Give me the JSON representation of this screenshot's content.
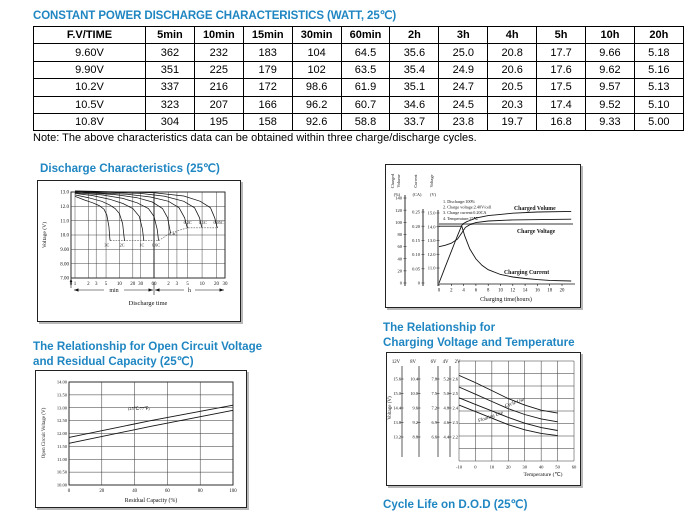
{
  "colors": {
    "accent": "#1f86c2",
    "line": "#141414",
    "grid": "#2a2a2a",
    "gray_axis": "#8a8a8a"
  },
  "header": {
    "title": "CONSTANT POWER DISCHARGE CHARACTERISTICS (WATT, 25℃)",
    "note": "Note: The above characteristics data can be obtained within three charge/discharge cycles."
  },
  "table": {
    "headers": [
      "F.V/TIME",
      "5min",
      "10min",
      "15min",
      "30min",
      "60min",
      "2h",
      "3h",
      "4h",
      "5h",
      "10h",
      "20h"
    ],
    "rows": [
      [
        "9.60V",
        "362",
        "232",
        "183",
        "104",
        "64.5",
        "35.6",
        "25.0",
        "20.8",
        "17.7",
        "9.66",
        "5.18"
      ],
      [
        "9.90V",
        "351",
        "225",
        "179",
        "102",
        "63.5",
        "35.4",
        "24.9",
        "20.6",
        "17.6",
        "9.62",
        "5.16"
      ],
      [
        "10.2V",
        "337",
        "216",
        "172",
        "98.6",
        "61.9",
        "35.1",
        "24.7",
        "20.5",
        "17.5",
        "9.57",
        "5.13"
      ],
      [
        "10.5V",
        "323",
        "207",
        "166",
        "96.2",
        "60.7",
        "34.6",
        "24.5",
        "20.3",
        "17.4",
        "9.52",
        "5.10"
      ],
      [
        "10.8V",
        "304",
        "195",
        "158",
        "92.6",
        "58.8",
        "33.7",
        "23.8",
        "19.7",
        "16.8",
        "9.33",
        "5.00"
      ]
    ]
  },
  "headings": {
    "discharge": "Discharge Characteristics (25℃)",
    "ocv_line1": "The Relationship for Open Circuit Voltage",
    "ocv_line2": "and Residual Capacity (25℃)",
    "cvt_line1": "The Relationship for",
    "cvt_line2": "Charging Voltage and Temperature",
    "cycle_life": "Cycle Life on D.O.D (25℃)"
  },
  "chart_data": [
    {
      "id": "discharge_characteristics",
      "type": "line",
      "title": "Discharge Characteristics (25℃)",
      "ylabel": "Voltage (V)",
      "xlabel": "Discharge time",
      "x_section_labels": [
        "min",
        "h"
      ],
      "x_origin_label": "0",
      "y_ticks": [
        {
          "label": "13.0",
          "v": 13
        },
        {
          "label": "12.0",
          "v": 12
        },
        {
          "label": "11.0",
          "v": 11
        },
        {
          "label": "10.0",
          "v": 10
        },
        {
          "label": "9.00",
          "v": 9
        },
        {
          "label": "8.00",
          "v": 8
        },
        {
          "label": "7.00",
          "v": 7
        }
      ],
      "x_ticks_min": [
        1,
        2,
        3,
        5,
        10,
        20,
        30,
        60
      ],
      "x_ticks_h": [
        2,
        3,
        5,
        10,
        20,
        30
      ],
      "ylim": [
        7,
        13.5
      ],
      "series": [
        {
          "name": "3C",
          "points": [
            [
              1,
              12.7
            ],
            [
              1.6,
              12.45
            ],
            [
              2.5,
              12.25
            ],
            [
              3.5,
              12.05
            ],
            [
              4.5,
              11.8
            ],
            [
              5.2,
              11.4
            ],
            [
              5.8,
              10.6
            ],
            [
              6.1,
              9.7
            ],
            [
              6.2,
              9.6
            ]
          ],
          "label_at": [
            5.2,
            9.2
          ]
        },
        {
          "name": "2C",
          "points": [
            [
              1,
              12.8
            ],
            [
              2,
              12.6
            ],
            [
              4,
              12.35
            ],
            [
              6,
              12.1
            ],
            [
              8,
              11.85
            ],
            [
              10,
              11.5
            ],
            [
              11.8,
              10.8
            ],
            [
              12.8,
              9.8
            ],
            [
              13,
              9.6
            ]
          ],
          "label_at": [
            11.5,
            9.2
          ]
        },
        {
          "name": "1C",
          "points": [
            [
              1,
              12.9
            ],
            [
              2.5,
              12.75
            ],
            [
              6,
              12.5
            ],
            [
              12,
              12.2
            ],
            [
              20,
              11.85
            ],
            [
              28,
              11.3
            ],
            [
              33,
              10.4
            ],
            [
              35,
              9.7
            ],
            [
              36,
              9.6
            ]
          ],
          "label_at": [
            32,
            9.2
          ]
        },
        {
          "name": "0.6C",
          "points": [
            [
              1,
              12.95
            ],
            [
              4,
              12.8
            ],
            [
              12,
              12.55
            ],
            [
              25,
              12.25
            ],
            [
              45,
              11.85
            ],
            [
              60,
              11.3
            ],
            [
              70,
              10.4
            ],
            [
              74,
              9.7
            ],
            [
              75,
              9.6
            ]
          ],
          "label_at": [
            66,
            9.2
          ]
        },
        {
          "name": "0.4C",
          "points": [
            [
              1,
              13.0
            ],
            [
              8,
              12.82
            ],
            [
              25,
              12.6
            ],
            [
              55,
              12.3
            ],
            [
              90,
              11.85
            ],
            [
              115,
              11.2
            ],
            [
              128,
              10.4
            ],
            [
              132,
              10.15
            ]
          ],
          "label_at": [
            150,
            9.95
          ]
        },
        {
          "name": "0.2C",
          "points": [
            [
              1,
              13.02
            ],
            [
              15,
              12.85
            ],
            [
              50,
              12.65
            ],
            [
              120,
              12.35
            ],
            [
              200,
              11.9
            ],
            [
              260,
              11.2
            ],
            [
              290,
              10.6
            ],
            [
              298,
              10.5
            ]
          ],
          "label_at": [
            300,
            10.78
          ]
        },
        {
          "name": "0.1C",
          "points": [
            [
              1,
              13.05
            ],
            [
              30,
              12.9
            ],
            [
              100,
              12.7
            ],
            [
              250,
              12.35
            ],
            [
              420,
              11.9
            ],
            [
              530,
              11.2
            ],
            [
              585,
              10.6
            ],
            [
              600,
              10.5
            ]
          ],
          "label_at": [
            620,
            10.78
          ]
        },
        {
          "name": "0.05C",
          "points": [
            [
              1,
              13.08
            ],
            [
              60,
              12.95
            ],
            [
              250,
              12.72
            ],
            [
              550,
              12.35
            ],
            [
              900,
              11.9
            ],
            [
              1100,
              11.2
            ],
            [
              1220,
              10.6
            ],
            [
              1260,
              10.5
            ]
          ],
          "label_at": [
            1320,
            10.78
          ]
        }
      ],
      "cutoff_line": [
        [
          6.2,
          9.6
        ],
        [
          75,
          9.6
        ],
        [
          132,
          10.15
        ],
        [
          298,
          10.5
        ],
        [
          1260,
          10.5
        ]
      ]
    },
    {
      "id": "charge_characteristics",
      "type": "line",
      "xlabel": "Charging time(hours)",
      "x_ticks": [
        0,
        2,
        4,
        6,
        8,
        10,
        12,
        14,
        16,
        18,
        20
      ],
      "axes": {
        "volume": {
          "title_words": [
            "Charged",
            "Volume"
          ],
          "unit": "(%)",
          "ticks": [
            0,
            20,
            40,
            60,
            80,
            100,
            120,
            140
          ]
        },
        "current": {
          "title_words": [
            "Current"
          ],
          "unit": "(CA)",
          "ticks": [
            "0",
            "0.05",
            "0.10",
            "0.15",
            "0.20",
            "0.25"
          ]
        },
        "voltage": {
          "title_words": [
            "Voltage"
          ],
          "unit": "(V)",
          "ticks": [
            "11.0",
            "12.0",
            "13.0",
            "14.0",
            "15.0"
          ]
        }
      },
      "conditions": [
        "1. Discharge:100%",
        "2. Charge voltage:2.40V/cell",
        "3. Charge current:0.20CA",
        "4. Temperature:25℃"
      ],
      "curve_labels": {
        "volume": "Charged Volume",
        "voltage": "Charge Voltage",
        "current": "Charging Current"
      },
      "voltage_setpoint": 14.2,
      "series": {
        "charged_volume": [
          [
            0,
            0
          ],
          [
            0.5,
            13
          ],
          [
            1,
            26
          ],
          [
            1.5,
            39
          ],
          [
            2,
            52
          ],
          [
            2.5,
            65
          ],
          [
            3,
            78
          ],
          [
            3.7,
            95
          ],
          [
            4,
            98
          ],
          [
            4.5,
            101
          ],
          [
            5,
            103
          ],
          [
            6,
            107
          ],
          [
            8,
            111
          ],
          [
            10,
            113
          ],
          [
            12,
            115
          ],
          [
            16,
            117
          ],
          [
            21.5,
            118
          ]
        ],
        "charge_voltage": [
          [
            0,
            12.55
          ],
          [
            1,
            12.65
          ],
          [
            2,
            12.8
          ],
          [
            3,
            13.1
          ],
          [
            3.7,
            13.55
          ],
          [
            4.3,
            13.95
          ],
          [
            5,
            14.15
          ],
          [
            6,
            14.3
          ],
          [
            8,
            14.42
          ],
          [
            12,
            14.5
          ],
          [
            21.5,
            14.55
          ]
        ],
        "charging_current": [
          [
            0,
            0.2
          ],
          [
            3.7,
            0.2
          ],
          [
            4.2,
            0.165
          ],
          [
            5,
            0.12
          ],
          [
            6,
            0.085
          ],
          [
            7,
            0.062
          ],
          [
            8,
            0.047
          ],
          [
            10,
            0.03
          ],
          [
            12,
            0.021
          ],
          [
            14,
            0.016
          ],
          [
            16,
            0.012
          ],
          [
            18,
            0.009
          ],
          [
            21.5,
            0.007
          ]
        ]
      }
    },
    {
      "id": "ocv_vs_residual_capacity",
      "type": "line",
      "title": "The Relationship for Open Circuit Voltage and Residual Capacity (25℃)",
      "ylabel": "Open Circuit Voltage (V)",
      "xlabel": "Residual Capacity (%)",
      "annotation": "(25℃/77℉)",
      "y_ticks": [
        "14.00",
        "13.50",
        "13.00",
        "12.50",
        "12.00",
        "11.50",
        "11.00",
        "10.50",
        "10.00"
      ],
      "x_ticks": [
        0,
        20,
        40,
        60,
        80,
        100
      ],
      "ylim": [
        10,
        14
      ],
      "series": [
        {
          "name": "upper",
          "points": [
            [
              0,
              11.85
            ],
            [
              50,
              12.5
            ],
            [
              100,
              13.1
            ]
          ]
        },
        {
          "name": "lower",
          "points": [
            [
              0,
              11.62
            ],
            [
              50,
              12.28
            ],
            [
              100,
              12.9
            ]
          ]
        }
      ]
    },
    {
      "id": "charging_voltage_vs_temperature",
      "type": "line",
      "title": "The Relationship for Charging Voltage and Temperature",
      "ylabel": "Voltage (V)",
      "xlabel": "Temperature (℃)",
      "scale_headers": [
        "12V",
        "8V",
        "6V",
        "4V",
        "2V"
      ],
      "scales": [
        [
          "15.6",
          "15.0",
          "14.4",
          "13.8",
          "13.2"
        ],
        [
          "10.4",
          "10.0",
          "9.6",
          "9.2",
          "8.8"
        ],
        [
          "7.8",
          "7.5",
          "7.2",
          "6.9",
          "6.6"
        ],
        [
          "5.2",
          "5.0",
          "4.8",
          "4.6",
          "4.4"
        ],
        [
          "2.6",
          "2.5",
          "2.4",
          "2.3",
          "2.2"
        ]
      ],
      "x_ticks": [
        -10,
        0,
        10,
        20,
        30,
        40,
        50,
        60
      ],
      "band_labels": [
        "Cycle Use",
        "Floating Use"
      ],
      "series": [
        {
          "name": "cycle_upper",
          "points": [
            [
              -10,
              2.625
            ],
            [
              0,
              2.575
            ],
            [
              10,
              2.52
            ],
            [
              20,
              2.465
            ],
            [
              30,
              2.42
            ],
            [
              40,
              2.385
            ],
            [
              50,
              2.365
            ]
          ]
        },
        {
          "name": "cycle_lower",
          "points": [
            [
              -10,
              2.545
            ],
            [
              0,
              2.495
            ],
            [
              10,
              2.445
            ],
            [
              20,
              2.395
            ],
            [
              30,
              2.355
            ],
            [
              40,
              2.325
            ],
            [
              50,
              2.305
            ]
          ]
        },
        {
          "name": "floating_upper",
          "points": [
            [
              -10,
              2.47
            ],
            [
              0,
              2.425
            ],
            [
              10,
              2.38
            ],
            [
              20,
              2.335
            ],
            [
              30,
              2.295
            ],
            [
              40,
              2.265
            ],
            [
              50,
              2.245
            ]
          ]
        },
        {
          "name": "floating_lower",
          "points": [
            [
              -10,
              2.42
            ],
            [
              0,
              2.375
            ],
            [
              10,
              2.33
            ],
            [
              20,
              2.285
            ],
            [
              30,
              2.25
            ],
            [
              40,
              2.225
            ],
            [
              50,
              2.21
            ]
          ]
        }
      ]
    }
  ]
}
